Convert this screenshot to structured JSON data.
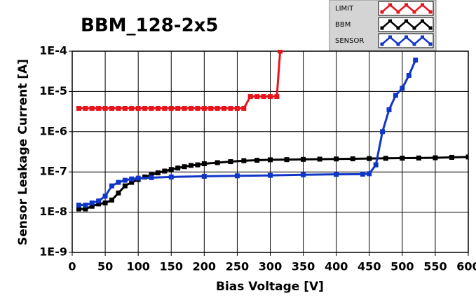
{
  "chart_data": {
    "type": "line",
    "title": "BBM_128-2x5",
    "xlabel": "Bias Voltage [V]",
    "ylabel": "Sensor Leakage Current [A]",
    "xlim": [
      0,
      600
    ],
    "xticks": [
      0,
      50,
      100,
      150,
      200,
      250,
      300,
      350,
      400,
      450,
      500,
      550,
      600
    ],
    "ylim": [
      1e-09,
      0.0001
    ],
    "log_y": true,
    "grid": true,
    "legend": "top-right",
    "yticks": [
      {
        "value": 1e-09,
        "label": "1E-9"
      },
      {
        "value": 1e-08,
        "label": "1E-8"
      },
      {
        "value": 1e-07,
        "label": "1E-7"
      },
      {
        "value": 1e-06,
        "label": "1E-6"
      },
      {
        "value": 1e-05,
        "label": "1E-5"
      },
      {
        "value": 0.0001,
        "label": "1E-4"
      }
    ],
    "series": [
      {
        "name": "LIMIT",
        "color": "#e8141c",
        "x": [
          10,
          20,
          30,
          40,
          50,
          60,
          70,
          80,
          90,
          100,
          110,
          120,
          130,
          140,
          150,
          160,
          170,
          180,
          190,
          200,
          210,
          220,
          230,
          240,
          250,
          260,
          270,
          280,
          290,
          300,
          310,
          315
        ],
        "values": [
          3.8e-06,
          3.8e-06,
          3.8e-06,
          3.8e-06,
          3.8e-06,
          3.8e-06,
          3.8e-06,
          3.8e-06,
          3.8e-06,
          3.8e-06,
          3.8e-06,
          3.8e-06,
          3.8e-06,
          3.8e-06,
          3.8e-06,
          3.8e-06,
          3.8e-06,
          3.8e-06,
          3.8e-06,
          3.8e-06,
          3.8e-06,
          3.8e-06,
          3.8e-06,
          3.8e-06,
          3.8e-06,
          3.8e-06,
          7.5e-06,
          7.5e-06,
          7.5e-06,
          7.5e-06,
          7.5e-06,
          0.0001
        ]
      },
      {
        "name": "BBM",
        "color": "#000000",
        "x": [
          10,
          20,
          30,
          40,
          50,
          60,
          70,
          80,
          90,
          100,
          110,
          120,
          130,
          140,
          150,
          160,
          170,
          180,
          190,
          200,
          220,
          240,
          260,
          280,
          300,
          325,
          350,
          375,
          400,
          425,
          450,
          475,
          500,
          525,
          550,
          575,
          600
        ],
        "values": [
          1.2e-08,
          1.2e-08,
          1.4e-08,
          1.6e-08,
          1.7e-08,
          2e-08,
          3e-08,
          4.5e-08,
          5.5e-08,
          6.5e-08,
          7.5e-08,
          8.5e-08,
          9.5e-08,
          1.05e-07,
          1.15e-07,
          1.25e-07,
          1.35e-07,
          1.45e-07,
          1.5e-07,
          1.6e-07,
          1.7e-07,
          1.8e-07,
          1.9e-07,
          1.95e-07,
          2e-07,
          2.02e-07,
          2.05e-07,
          2.08e-07,
          2.1e-07,
          2.12e-07,
          2.15e-07,
          2.18e-07,
          2.2e-07,
          2.22e-07,
          2.25e-07,
          2.3e-07,
          2.35e-07
        ]
      },
      {
        "name": "SENSOR",
        "color": "#1036c8",
        "x": [
          10,
          20,
          30,
          40,
          50,
          60,
          70,
          80,
          90,
          100,
          120,
          150,
          200,
          250,
          300,
          350,
          400,
          440,
          450,
          460,
          470,
          480,
          490,
          500,
          510,
          520
        ],
        "values": [
          1.5e-08,
          1.5e-08,
          1.7e-08,
          1.9e-08,
          2.5e-08,
          4.5e-08,
          5.5e-08,
          6.2e-08,
          6.7e-08,
          7e-08,
          7.2e-08,
          7.5e-08,
          7.8e-08,
          8e-08,
          8.2e-08,
          8.5e-08,
          8.7e-08,
          8.8e-08,
          9e-08,
          1.5e-07,
          1e-06,
          3.5e-06,
          8e-06,
          1.2e-05,
          2.5e-05,
          6e-05
        ]
      }
    ]
  }
}
